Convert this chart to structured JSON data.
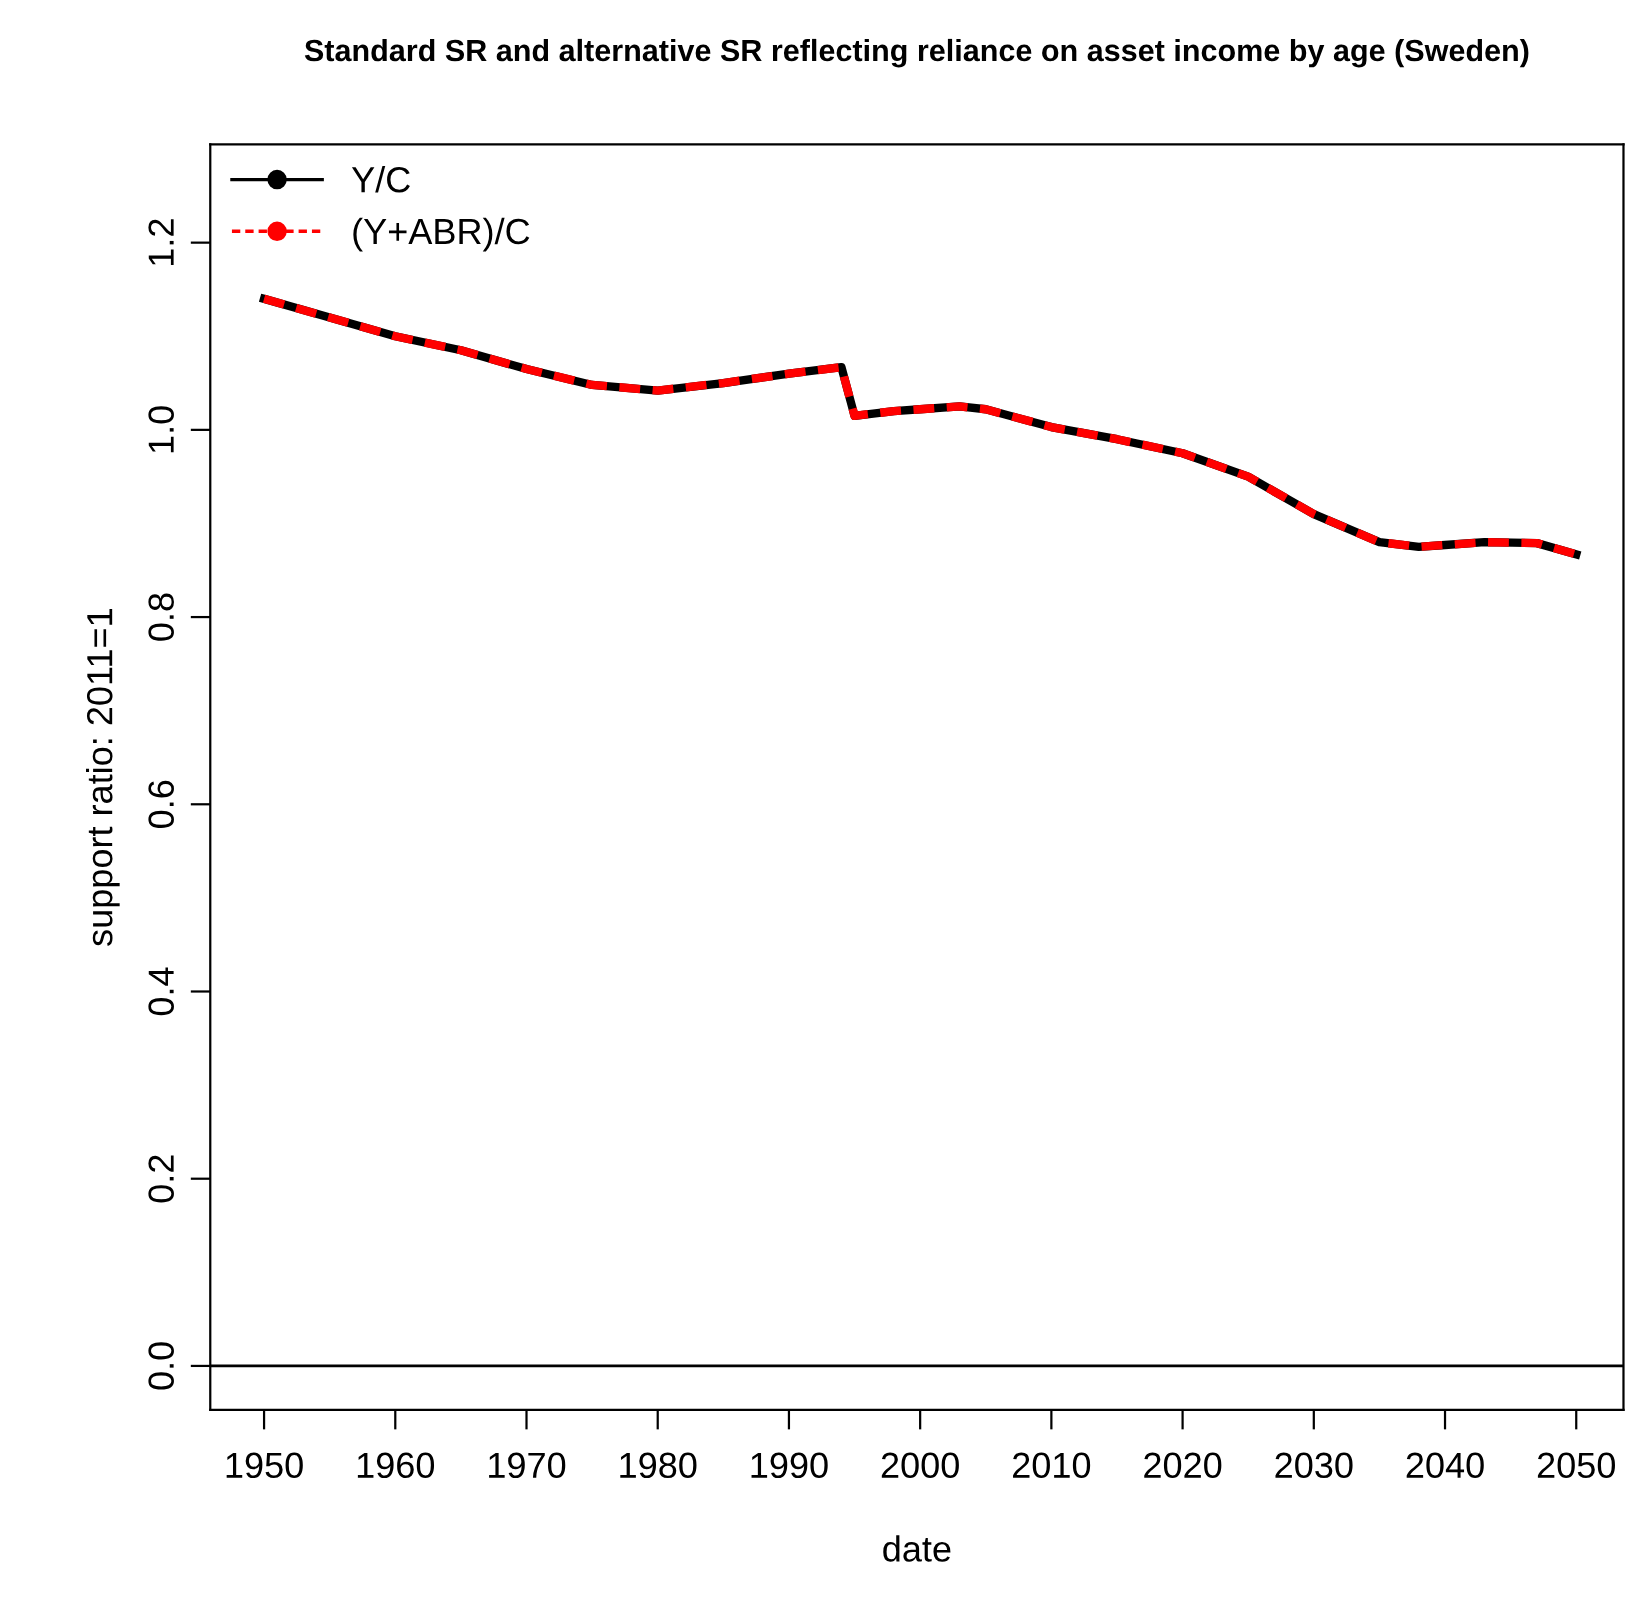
{
  "chart_data": {
    "type": "line",
    "title": "Standard SR and alternative SR reflecting reliance on asset income by age (Sweden)",
    "xlabel": "date",
    "ylabel": "support ratio: 2011=1",
    "x": [
      1950,
      1955,
      1960,
      1965,
      1970,
      1975,
      1980,
      1985,
      1990,
      1994,
      1995,
      1998,
      2000,
      2003,
      2005,
      2010,
      2015,
      2020,
      2025,
      2030,
      2035,
      2038,
      2040,
      2043,
      2047,
      2050
    ],
    "series": [
      {
        "name": "Y/C",
        "color": "#000000",
        "line_style": "solid",
        "values": [
          1.14,
          1.12,
          1.1,
          1.085,
          1.065,
          1.048,
          1.042,
          1.05,
          1.06,
          1.067,
          1.015,
          1.02,
          1.022,
          1.025,
          1.022,
          1.003,
          0.99,
          0.975,
          0.95,
          0.91,
          0.88,
          0.875,
          0.877,
          0.88,
          0.879,
          0.867
        ]
      },
      {
        "name": "(Y+ABR)/C",
        "color": "#ff0000",
        "line_style": "dashed",
        "values": [
          1.14,
          1.12,
          1.1,
          1.085,
          1.065,
          1.048,
          1.042,
          1.05,
          1.06,
          1.067,
          1.015,
          1.02,
          1.022,
          1.025,
          1.022,
          1.003,
          0.99,
          0.975,
          0.95,
          0.91,
          0.88,
          0.875,
          0.877,
          0.88,
          0.879,
          0.867
        ]
      }
    ],
    "xlim": [
      1945.9,
      2053.6
    ],
    "ylim": [
      -0.047,
      1.305
    ],
    "xticks": [
      1950,
      1960,
      1970,
      1980,
      1990,
      2000,
      2010,
      2020,
      2030,
      2040,
      2050
    ],
    "yticks": [
      {
        "value": 0,
        "label": "0.0"
      },
      0.2,
      0.4,
      0.6,
      0.8,
      {
        "value": 1,
        "label": "1.0"
      },
      1.2
    ],
    "ref_lines": [
      {
        "axis": "y",
        "value": 0,
        "color": "#000000"
      }
    ],
    "grid": false,
    "legend": "top left"
  }
}
